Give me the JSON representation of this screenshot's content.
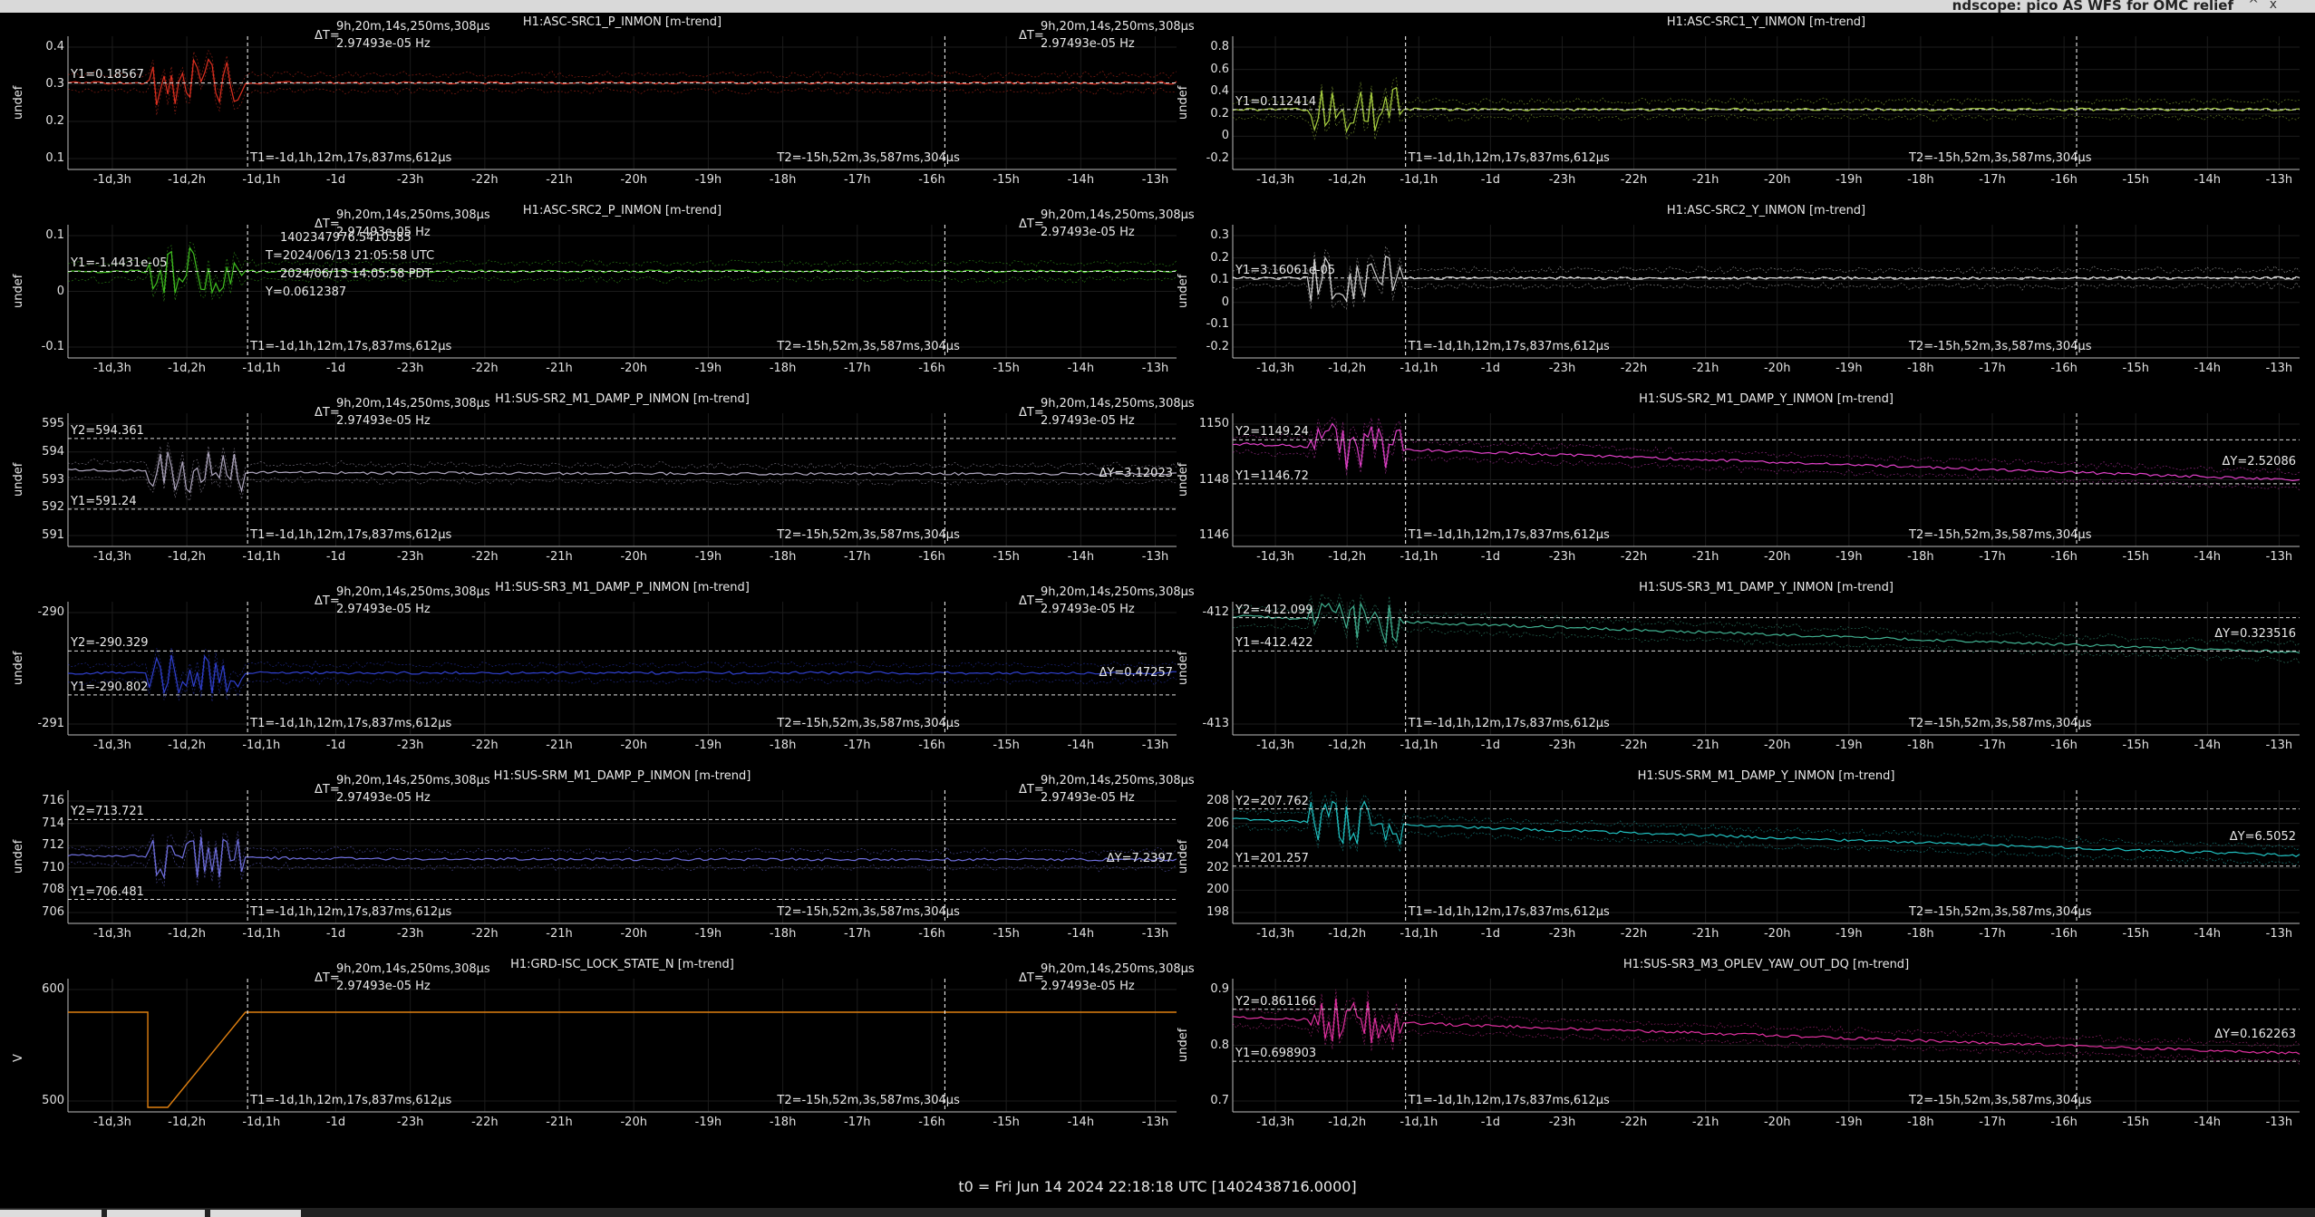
{
  "window": {
    "title": "ndscope: pico AS WFS for OMC relief",
    "min_icon": "^",
    "close_icon": "x"
  },
  "footer": "t0 = Fri Jun 14 2024 22:18:18 UTC [1402438716.0000]",
  "x_ticks": [
    "-1d,3h",
    "-1d,2h",
    "-1d,1h",
    "-1d",
    "-23h",
    "-22h",
    "-21h",
    "-20h",
    "-19h",
    "-18h",
    "-17h",
    "-16h",
    "-15h",
    "-14h",
    "-13h"
  ],
  "delta_t": {
    "label": "ΔT=",
    "value": "9h,20m,14s,250ms,308µs",
    "freq": "2.97493e-05 Hz"
  },
  "t1_label": "T1=-1d,1h,12m,17s,837ms,612µs",
  "t2_label": "T2=-15h,52m,3s,587ms,304µs",
  "cursor_info": {
    "gps": "1402347976.5410385",
    "utc": "T=2024/06/13 21:05:58 UTC",
    "pdt": "2024/06/13 14:05:58 PDT",
    "y": "Y=0.0612387"
  },
  "panels": [
    {
      "title": "H1:ASC-SRC1_P_INMON [m-trend]",
      "ylabel": "undef",
      "color": "#e03020",
      "yticks": [
        "0.4",
        "0.3",
        "0.2",
        "0.1"
      ],
      "y1": "Y1=0.18567",
      "y2": "",
      "dy": ""
    },
    {
      "title": "H1:ASC-SRC1_Y_INMON [m-trend]",
      "ylabel": "undef",
      "color": "#a8d040",
      "yticks": [
        "0.8",
        "0.6",
        "0.4",
        "0.2",
        "0",
        "-0.2"
      ],
      "y1": "Y1=0.112414",
      "y2": "",
      "dy": ""
    },
    {
      "title": "H1:ASC-SRC2_P_INMON [m-trend]",
      "ylabel": "undef",
      "color": "#40c020",
      "yticks": [
        "0.1",
        "0",
        "-0.1"
      ],
      "y1": "Y1=-1.4431e-05",
      "y2": "",
      "dy": ""
    },
    {
      "title": "H1:ASC-SRC2_Y_INMON [m-trend]",
      "ylabel": "undef",
      "color": "#d0d0d0",
      "yticks": [
        "0.3",
        "0.2",
        "0.1",
        "0",
        "-0.1",
        "-0.2"
      ],
      "y1": "Y1=3.16061e-05",
      "y2": "",
      "dy": ""
    },
    {
      "title": "H1:SUS-SR2_M1_DAMP_P_INMON [m-trend]",
      "ylabel": "undef",
      "color": "#b0a8c0",
      "yticks": [
        "595",
        "594",
        "593",
        "592",
        "591"
      ],
      "y1": "Y1=591.24",
      "y2": "Y2=594.361",
      "dy": "ΔY=3.12023"
    },
    {
      "title": "H1:SUS-SR2_M1_DAMP_Y_INMON [m-trend]",
      "ylabel": "undef",
      "color": "#e040c8",
      "yticks": [
        "1150",
        "1148",
        "1146"
      ],
      "y1": "Y1=1146.72",
      "y2": "Y2=1149.24",
      "dy": "ΔY=2.52086"
    },
    {
      "title": "H1:SUS-SR3_M1_DAMP_P_INMON [m-trend]",
      "ylabel": "undef",
      "color": "#3040d0",
      "yticks": [
        "-290",
        "-291"
      ],
      "y1": "Y1=-290.802",
      "y2": "Y2=-290.329",
      "dy": "ΔY=0.47257"
    },
    {
      "title": "H1:SUS-SR3_M1_DAMP_Y_INMON [m-trend]",
      "ylabel": "undef",
      "color": "#40b090",
      "yticks": [
        "-412",
        "-413"
      ],
      "y1": "Y1=-412.422",
      "y2": "Y2=-412.099",
      "dy": "ΔY=0.323516"
    },
    {
      "title": "H1:SUS-SRM_M1_DAMP_P_INMON [m-trend]",
      "ylabel": "undef",
      "color": "#7070e0",
      "yticks": [
        "716",
        "714",
        "712",
        "710",
        "708",
        "706"
      ],
      "y1": "Y1=706.481",
      "y2": "Y2=713.721",
      "dy": "ΔY=7.2397"
    },
    {
      "title": "H1:SUS-SRM_M1_DAMP_Y_INMON [m-trend]",
      "ylabel": "undef",
      "color": "#20c0c0",
      "yticks": [
        "208",
        "206",
        "204",
        "202",
        "200",
        "198"
      ],
      "y1": "Y1=201.257",
      "y2": "Y2=207.762",
      "dy": "ΔY=6.5052"
    },
    {
      "title": "H1:GRD-ISC_LOCK_STATE_N [m-trend]",
      "ylabel": "V",
      "color": "#e08010",
      "yticks": [
        "600",
        "500"
      ],
      "y1": "",
      "y2": "",
      "dy": ""
    },
    {
      "title": "H1:SUS-SR3_M3_OPLEV_YAW_OUT_DQ [m-trend]",
      "ylabel": "undef",
      "color": "#e030a0",
      "yticks": [
        "0.9",
        "0.8",
        "0.7"
      ],
      "y1": "Y1=0.698903",
      "y2": "Y2=0.861166",
      "dy": "ΔY=0.162263"
    }
  ]
}
